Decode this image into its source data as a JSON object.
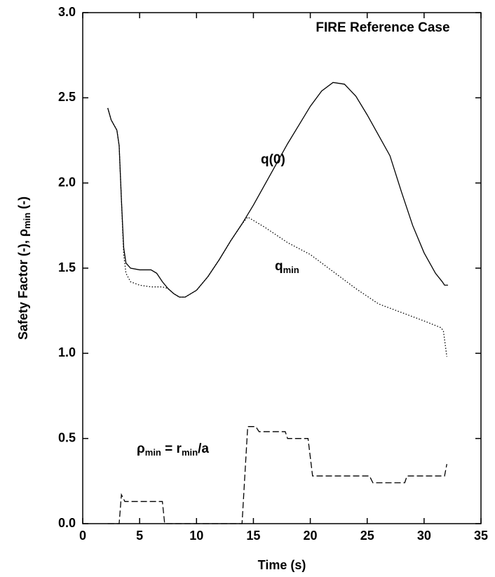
{
  "chart_data": {
    "type": "line",
    "title": "FIRE Reference Case",
    "xlabel": [
      "Time (s)"
    ],
    "ylabel": [
      "Safety Factor (-), ρ",
      "min",
      " (-)"
    ],
    "xlim": [
      0,
      35
    ],
    "ylim": [
      0,
      3
    ],
    "xticks": [
      0,
      5,
      10,
      15,
      20,
      25,
      30,
      35
    ],
    "yticks": [
      {
        "value": 0,
        "label": "0.0"
      },
      {
        "value": 0.5,
        "label": "0.5"
      },
      {
        "value": 1,
        "label": "1.0"
      },
      {
        "value": 1.5,
        "label": "1.5"
      },
      {
        "value": 2,
        "label": "2.0"
      },
      {
        "value": 2.5,
        "label": "2.5"
      },
      {
        "value": 3,
        "label": "3.0"
      }
    ],
    "series": [
      {
        "label": [
          "q(0)"
        ],
        "color": "#000000",
        "style": "solid",
        "x": [
          2.2,
          2.5,
          3.0,
          3.2,
          3.4,
          3.6,
          3.8,
          4.2,
          5,
          6,
          6.5,
          7,
          7.5,
          8,
          8.5,
          9,
          10,
          11,
          12,
          13,
          14,
          15,
          16,
          17,
          18,
          19,
          20,
          21,
          22,
          23,
          24,
          25,
          26,
          27,
          28,
          29,
          30,
          31,
          31.6,
          31.8,
          32.1
        ],
        "values": [
          2.44,
          2.37,
          2.31,
          2.22,
          1.9,
          1.62,
          1.53,
          1.5,
          1.49,
          1.49,
          1.47,
          1.42,
          1.38,
          1.35,
          1.33,
          1.33,
          1.37,
          1.45,
          1.55,
          1.66,
          1.76,
          1.87,
          1.99,
          2.11,
          2.23,
          2.34,
          2.45,
          2.54,
          2.59,
          2.58,
          2.51,
          2.4,
          2.28,
          2.16,
          1.95,
          1.75,
          1.59,
          1.47,
          1.42,
          1.4,
          1.4
        ]
      },
      {
        "label": [
          "q",
          "min"
        ],
        "color": "#000000",
        "style": "dotted",
        "x": [
          2.2,
          2.5,
          3.0,
          3.2,
          3.4,
          3.6,
          3.8,
          4.2,
          5,
          6,
          7,
          7.5,
          8,
          8.5,
          9,
          10,
          11,
          12,
          13,
          14,
          14.5,
          16,
          18,
          20,
          22,
          24,
          26,
          28,
          30,
          31.5,
          31.7,
          32
        ],
        "values": [
          2.44,
          2.37,
          2.31,
          2.22,
          1.9,
          1.58,
          1.47,
          1.42,
          1.4,
          1.39,
          1.39,
          1.38,
          1.35,
          1.33,
          1.33,
          1.37,
          1.45,
          1.55,
          1.66,
          1.76,
          1.8,
          1.74,
          1.65,
          1.58,
          1.48,
          1.38,
          1.29,
          1.24,
          1.19,
          1.15,
          1.13,
          0.98
        ]
      },
      {
        "label": [
          "ρ",
          "min",
          " = r",
          "min",
          "/a"
        ],
        "color": "#000000",
        "style": "dashed",
        "x": [
          2.2,
          3.2,
          3.4,
          3.7,
          7.0,
          7.2,
          14.0,
          14.5,
          15.2,
          15.5,
          17.8,
          18,
          19.8,
          20.2,
          25.2,
          25.5,
          28.3,
          28.5,
          31.8,
          32
        ],
        "values": [
          0,
          0,
          0.17,
          0.13,
          0.13,
          0,
          0,
          0.57,
          0.57,
          0.54,
          0.54,
          0.5,
          0.5,
          0.28,
          0.28,
          0.24,
          0.24,
          0.28,
          0.28,
          0.35
        ]
      }
    ]
  }
}
